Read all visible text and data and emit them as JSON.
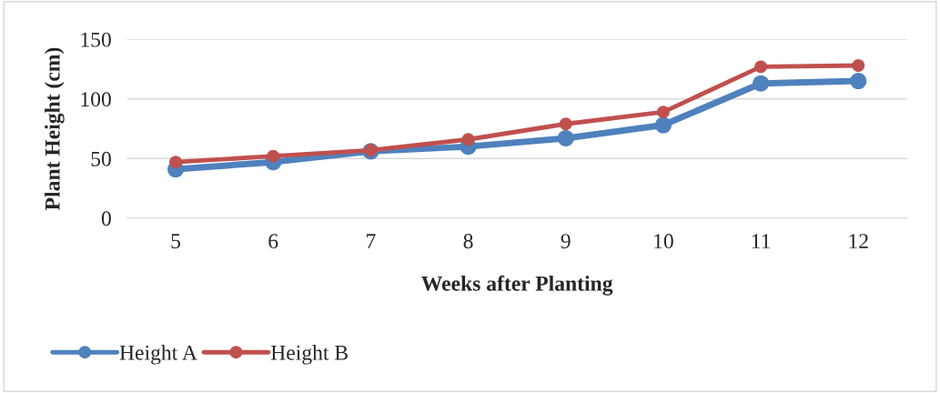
{
  "chart_data": {
    "type": "line",
    "xlabel": "Weeks after Planting",
    "ylabel": "Plant Height (cm)",
    "categories": [
      "5",
      "6",
      "7",
      "8",
      "9",
      "10",
      "11",
      "12"
    ],
    "series": [
      {
        "name": "Height A",
        "color": "#4f81bd",
        "values": [
          41,
          47,
          56,
          60,
          67,
          78,
          113,
          115
        ]
      },
      {
        "name": "Height B",
        "color": "#c0504d",
        "values": [
          47,
          52,
          57,
          66,
          79,
          89,
          127,
          128
        ]
      }
    ],
    "ylim": [
      0,
      150
    ],
    "yticks": [
      0,
      50,
      100,
      150
    ],
    "grid": "y",
    "legend": "bottom left",
    "marker": "circle",
    "line_style": "solid"
  }
}
